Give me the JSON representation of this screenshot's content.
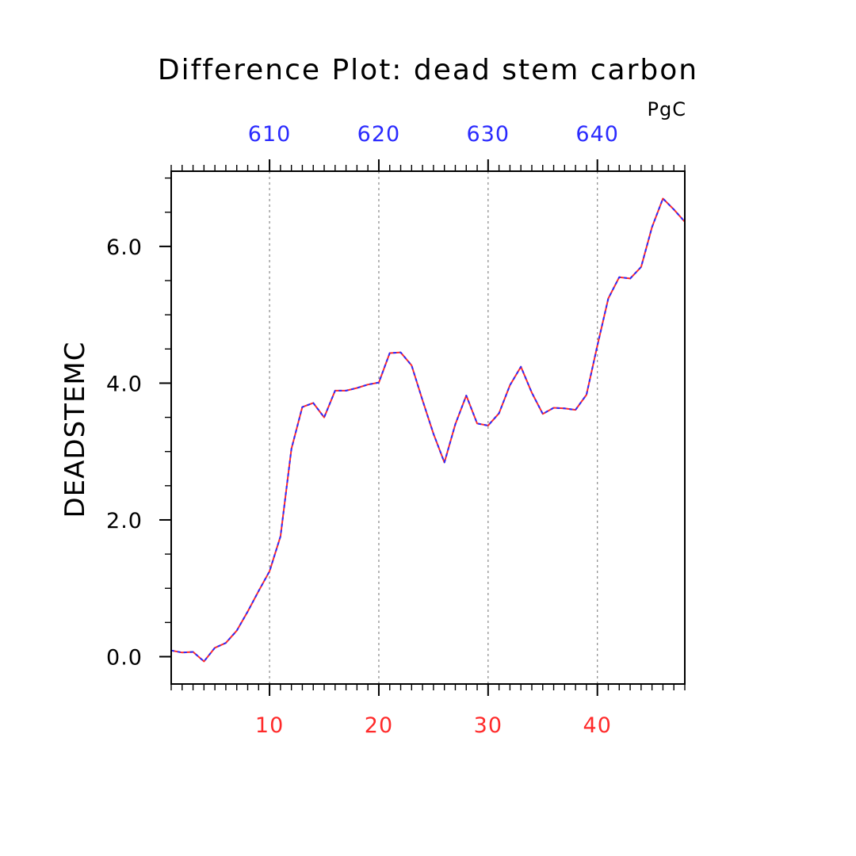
{
  "chart_data": {
    "type": "line",
    "title": "Difference Plot: dead stem carbon",
    "units": "PgC",
    "ylabel": "DEADSTEMC",
    "xlim": [
      1,
      48
    ],
    "ylim": [
      -0.4,
      7.1
    ],
    "grid": "vertical dashed lines at major bottom ticks",
    "bottom_axis": {
      "ticks": [
        10,
        20,
        30,
        40
      ],
      "labels": [
        "10",
        "20",
        "30",
        "40"
      ],
      "color": "#ff2a2a"
    },
    "top_axis": {
      "ticks": [
        10,
        20,
        30,
        40
      ],
      "labels": [
        "610",
        "620",
        "630",
        "640"
      ],
      "color": "#2a2aff"
    },
    "y_axis": {
      "ticks": [
        0,
        2,
        4,
        6
      ],
      "labels": [
        "0.0",
        "2.0",
        "4.0",
        "6.0"
      ],
      "minor_step": 0.5
    },
    "series": [
      {
        "color": "#ff2a2a",
        "style": "solid",
        "x": [
          1,
          2,
          3,
          4,
          5,
          6,
          7,
          8,
          9,
          10,
          11,
          12,
          13,
          14,
          15,
          16,
          17,
          18,
          19,
          20,
          21,
          22,
          23,
          24,
          25,
          26,
          27,
          28,
          29,
          30,
          31,
          32,
          33,
          34,
          35,
          36,
          37,
          38,
          39,
          40,
          41,
          42,
          43,
          44,
          45,
          46,
          47,
          48
        ],
        "values": [
          0.09,
          0.06,
          0.07,
          -0.07,
          0.13,
          0.2,
          0.38,
          0.66,
          0.96,
          1.25,
          1.76,
          3.04,
          3.65,
          3.71,
          3.5,
          3.89,
          3.89,
          3.93,
          3.98,
          4.01,
          4.44,
          4.45,
          4.26,
          3.75,
          3.26,
          2.84,
          3.4,
          3.82,
          3.41,
          3.38,
          3.56,
          3.97,
          4.24,
          3.86,
          3.55,
          3.64,
          3.63,
          3.61,
          3.83,
          4.55,
          5.24,
          5.55,
          5.53,
          5.7,
          6.28,
          6.7,
          6.54,
          6.36
        ]
      },
      {
        "color": "#2a2aff",
        "style": "dashed",
        "x": [
          1,
          2,
          3,
          4,
          5,
          6,
          7,
          8,
          9,
          10,
          11,
          12,
          13,
          14,
          15,
          16,
          17,
          18,
          19,
          20,
          21,
          22,
          23,
          24,
          25,
          26,
          27,
          28,
          29,
          30,
          31,
          32,
          33,
          34,
          35,
          36,
          37,
          38,
          39,
          40,
          41,
          42,
          43,
          44,
          45,
          46,
          47,
          48
        ],
        "values": [
          0.09,
          0.06,
          0.07,
          -0.07,
          0.13,
          0.2,
          0.38,
          0.66,
          0.96,
          1.25,
          1.76,
          3.04,
          3.65,
          3.71,
          3.5,
          3.89,
          3.89,
          3.93,
          3.98,
          4.01,
          4.44,
          4.45,
          4.26,
          3.75,
          3.26,
          2.84,
          3.4,
          3.82,
          3.41,
          3.38,
          3.56,
          3.97,
          4.24,
          3.86,
          3.55,
          3.64,
          3.63,
          3.61,
          3.83,
          4.55,
          5.24,
          5.55,
          5.53,
          5.7,
          6.28,
          6.7,
          6.54,
          6.36
        ]
      }
    ]
  }
}
